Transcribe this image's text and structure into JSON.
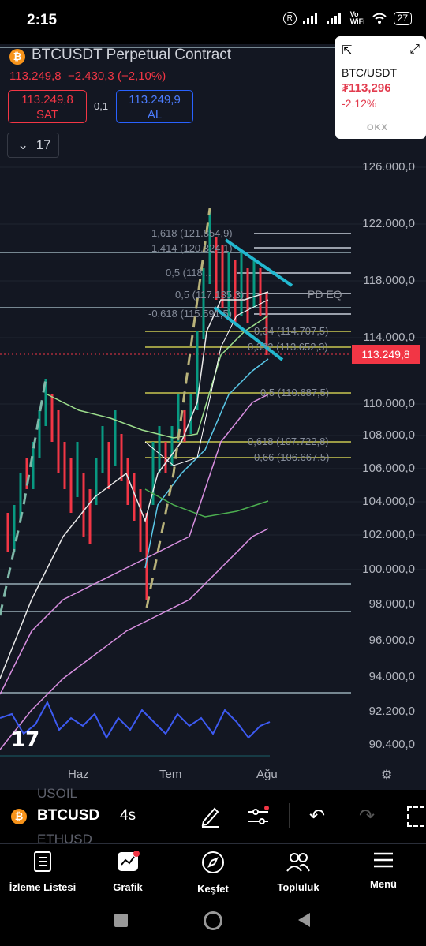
{
  "status": {
    "time": "2:15",
    "volte": "Vo\nWiFi",
    "battery": "27"
  },
  "header": {
    "symbol": "BTCUSDT Perpetual Contract",
    "last": "113.249,8",
    "change": "−2.430,3 (−2,10%)",
    "sell_price": "113.249,8",
    "sell_label": "SAT",
    "spread": "0,1",
    "buy_price": "113.249,9",
    "buy_label": "AL",
    "indicator_count": "17"
  },
  "widget": {
    "pair": "BTC/USDT",
    "price": "₮113,296",
    "change": "-2.12%",
    "brand": "OKX"
  },
  "chart_data": {
    "type": "line",
    "y_axis": [
      "126.000,0",
      "122.000,0",
      "118.000,0",
      "114.000,0",
      "110.000,0",
      "108.000,0",
      "106.000,0",
      "104.000,0",
      "102.000,0",
      "100.000,0",
      "98.000,0",
      "96.000,0",
      "94.000,0",
      "92.200,0",
      "90.400,0"
    ],
    "x_axis": [
      "Haz",
      "Tem",
      "Ağu"
    ],
    "current_price": "113.249,8",
    "fib_levels": [
      "1,618 (121.854,9)",
      "1,414 (120.324,1)",
      "0,5 (118...",
      "0,5 (117.135,3)",
      "-0,618 (115.591,5)",
      "0,34 (114.707,5)",
      "0,382 (113.652,3)",
      "0,5 (110.687,5)",
      "0,618 (107.722,8)",
      "0,66 (106.667,5)"
    ],
    "annotation": "PD EQ"
  },
  "toolbar": {
    "symbol": "BTCUSD",
    "interval": "4s",
    "ghost_above": "USOIL",
    "ghost_below": "ETHUSD"
  },
  "nav": [
    {
      "label": "İzleme Listesi"
    },
    {
      "label": "Grafik"
    },
    {
      "label": "Keşfet"
    },
    {
      "label": "Topluluk"
    },
    {
      "label": "Menü"
    }
  ]
}
